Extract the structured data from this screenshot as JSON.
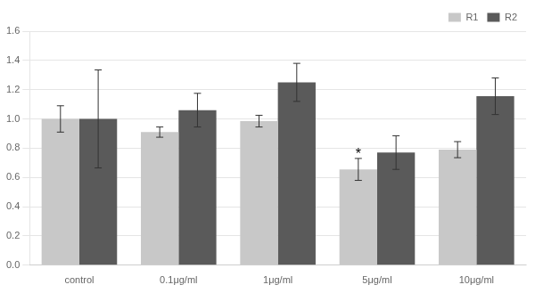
{
  "chart_data": {
    "type": "bar",
    "categories": [
      "control",
      "0.1μg/ml",
      "1μg/ml",
      "5μg/ml",
      "10μg/ml"
    ],
    "series": [
      {
        "name": "R1",
        "color": "#c8c8c8",
        "values": [
          1.0,
          0.91,
          0.985,
          0.655,
          0.79
        ],
        "errors": [
          0.09,
          0.035,
          0.04,
          0.075,
          0.055
        ]
      },
      {
        "name": "R2",
        "color": "#5a5a5a",
        "values": [
          1.0,
          1.06,
          1.25,
          0.77,
          1.155
        ],
        "errors": [
          0.335,
          0.115,
          0.13,
          0.115,
          0.125
        ]
      }
    ],
    "annotations": [
      {
        "text": "*",
        "category": "5μg/ml",
        "series": "R1"
      }
    ],
    "ylim": [
      0,
      1.6
    ],
    "yticks": [
      {
        "value": 0,
        "label": "0.0"
      },
      0.2,
      0.4,
      0.6,
      0.8,
      {
        "value": 1.0,
        "label": "1.0"
      },
      1.2,
      1.4,
      1.6
    ],
    "grid": true,
    "legend": "upper right"
  }
}
